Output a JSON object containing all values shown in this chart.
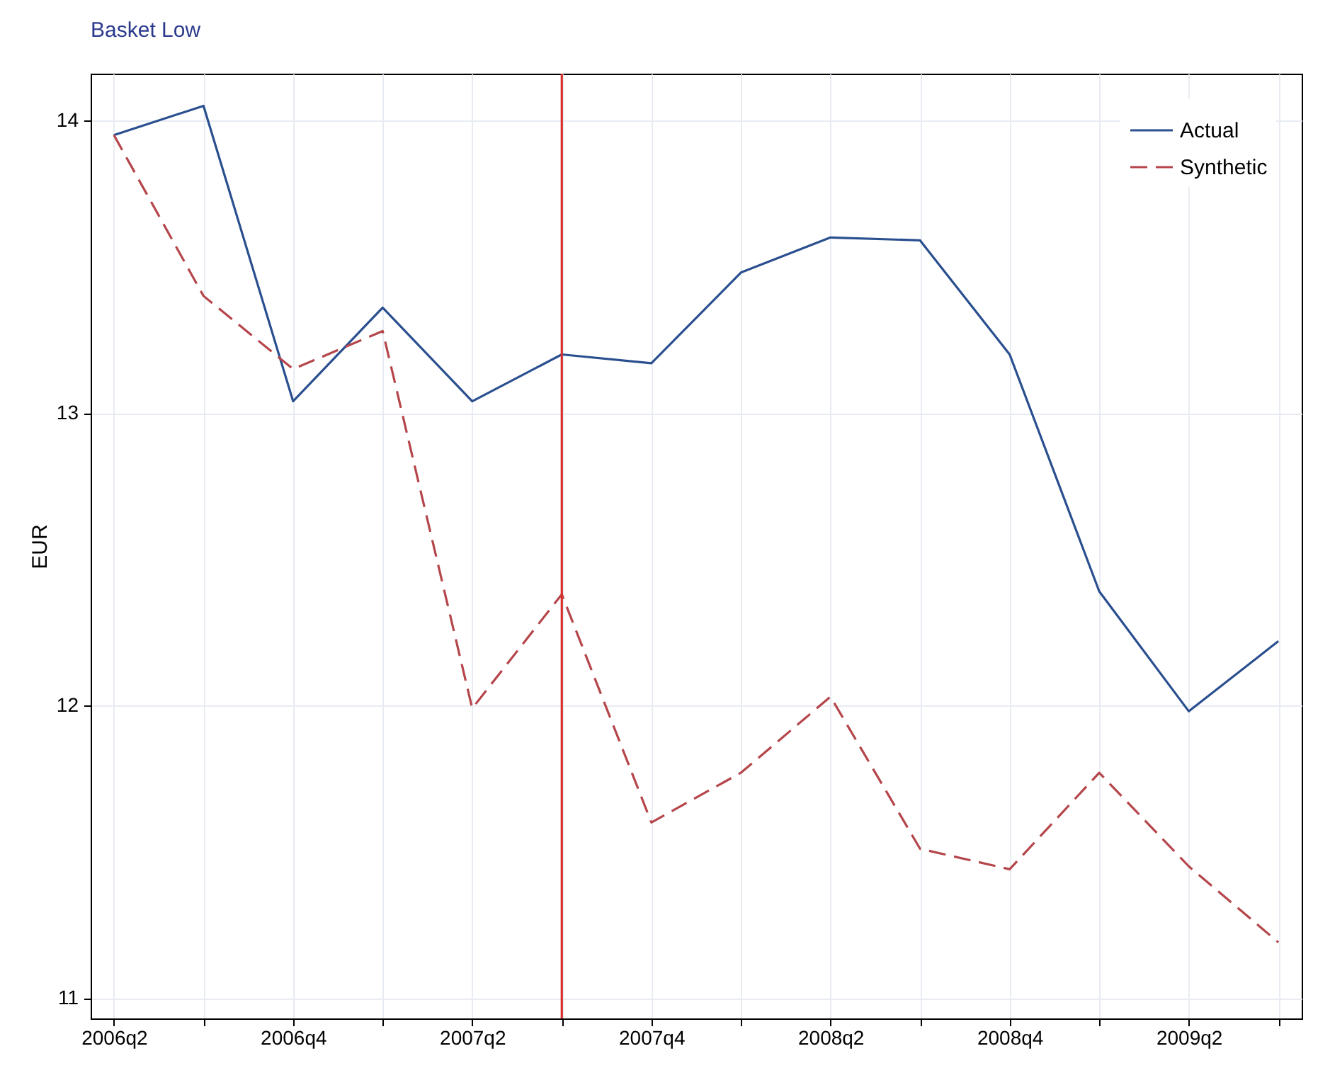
{
  "chart_data": {
    "type": "line",
    "title": "Basket Low",
    "ylabel": "EUR",
    "categories": [
      "2006q2",
      null,
      "2006q4",
      null,
      "2007q2",
      null,
      "2007q4",
      null,
      "2008q2",
      null,
      "2008q4",
      null,
      "2009q2",
      null
    ],
    "ylim": [
      10.93,
      14.16
    ],
    "yticks": [
      11,
      12,
      13,
      14
    ],
    "series": [
      {
        "name": "Actual",
        "color": "#2a4f8f",
        "line_style": "solid",
        "values": [
          13.95,
          14.05,
          13.04,
          13.36,
          13.04,
          13.2,
          13.17,
          13.48,
          13.6,
          13.59,
          13.2,
          12.39,
          11.98,
          12.22
        ]
      },
      {
        "name": "Synthetic",
        "color": "#b5464b",
        "line_style": "dashed",
        "values": [
          13.95,
          13.4,
          13.15,
          13.28,
          11.99,
          12.38,
          11.6,
          11.77,
          12.03,
          11.51,
          11.44,
          11.77,
          11.45,
          11.19
        ]
      }
    ],
    "grid": true,
    "legend": "top right"
  }
}
